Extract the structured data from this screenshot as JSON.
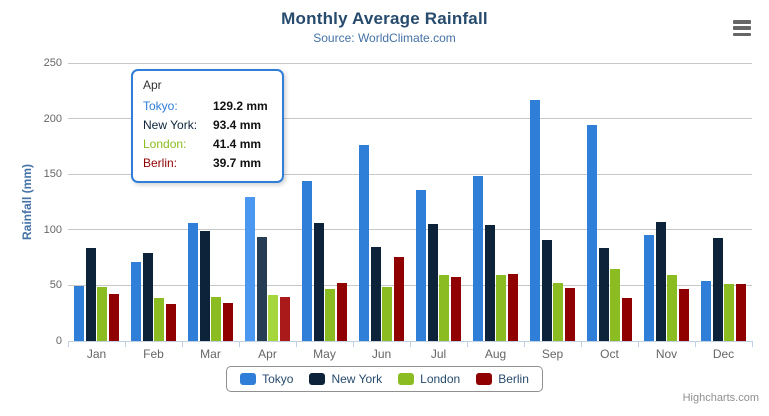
{
  "chart_data": {
    "type": "bar",
    "title": "Monthly Average Rainfall",
    "subtitle": "Source: WorldClimate.com",
    "xlabel": "",
    "ylabel": "Rainfall (mm)",
    "ylim": [
      0,
      250
    ],
    "ytick_interval": 50,
    "yticks": [
      0,
      50,
      100,
      150,
      200,
      250
    ],
    "grid": true,
    "legend_position": "bottom-center",
    "categories": [
      "Jan",
      "Feb",
      "Mar",
      "Apr",
      "May",
      "Jun",
      "Jul",
      "Aug",
      "Sep",
      "Oct",
      "Nov",
      "Dec"
    ],
    "series": [
      {
        "name": "Tokyo",
        "color": "#2f7ed8",
        "hover_color": "#4a98f2",
        "values": [
          49.9,
          71.5,
          106.4,
          129.2,
          144.0,
          176.0,
          135.6,
          148.5,
          216.4,
          194.1,
          95.6,
          54.4
        ]
      },
      {
        "name": "New York",
        "color": "#0d233a",
        "hover_color": "#273d54",
        "values": [
          83.6,
          78.8,
          98.5,
          93.4,
          106.0,
          84.5,
          105.0,
          104.3,
          91.2,
          83.5,
          106.6,
          92.3
        ]
      },
      {
        "name": "London",
        "color": "#8bbc21",
        "hover_color": "#a5d63b",
        "values": [
          48.9,
          38.8,
          39.3,
          41.4,
          47.0,
          48.3,
          59.0,
          59.6,
          52.4,
          65.2,
          59.3,
          51.2
        ]
      },
      {
        "name": "Berlin",
        "color": "#910000",
        "hover_color": "#ab1a1a",
        "values": [
          42.4,
          33.2,
          34.5,
          39.7,
          52.6,
          75.5,
          57.4,
          60.4,
          47.6,
          39.1,
          46.8,
          51.1
        ]
      }
    ],
    "hovered_category": "Apr"
  },
  "tooltip": {
    "header": "Apr",
    "rows": [
      {
        "label": "Tokyo:",
        "value": "129.2 mm",
        "color": "#2f7ed8"
      },
      {
        "label": "New York:",
        "value": "93.4 mm",
        "color": "#0d233a"
      },
      {
        "label": "London:",
        "value": "41.4 mm",
        "color": "#8bbc21"
      },
      {
        "label": "Berlin:",
        "value": "39.7 mm",
        "color": "#910000"
      }
    ]
  },
  "credits": {
    "text": "Highcharts.com"
  },
  "export_menu": {
    "icon": "hamburger-icon"
  },
  "colors": {
    "title": "#274b6d",
    "subtitle": "#4572a7",
    "axis_line": "#c0d0e0",
    "gridline": "#c8c8c8",
    "tick_label": "#666666",
    "legend_border": "#909090",
    "tooltip_border": "#2f7ed8"
  }
}
